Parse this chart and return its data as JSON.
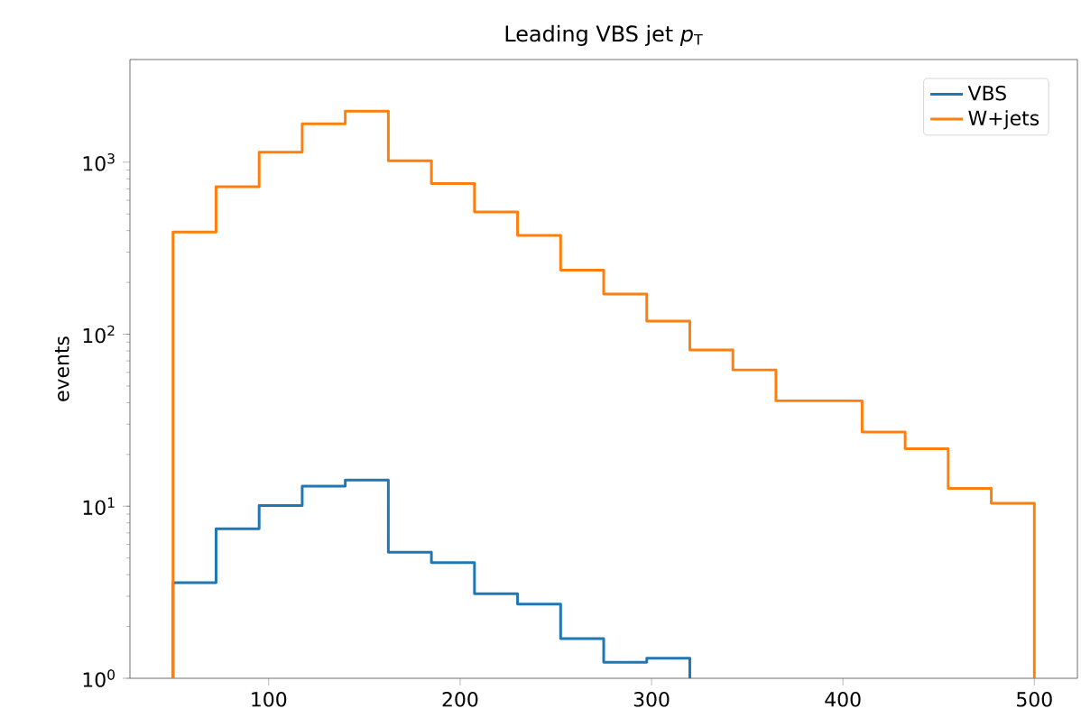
{
  "chart_data": {
    "type": "histogram",
    "title": "Leading VBS jet *p*$_{T}$",
    "ylabel": "events",
    "log": "y",
    "legend": "top right",
    "grid": false,
    "xlim": [
      27.5,
      522.5
    ],
    "xticks": [
      100,
      200,
      300,
      400,
      500
    ],
    "ylim": [
      1,
      3950
    ],
    "yticks": [
      {
        "value": 1,
        "label": "10$^{0}$"
      },
      {
        "value": 10,
        "label": "10$^{1}$"
      },
      {
        "value": 100,
        "label": "10$^{2}$"
      },
      {
        "value": 1000,
        "label": "10$^{3}$"
      }
    ],
    "bins": [
      50,
      72.5,
      95,
      117.5,
      140,
      162.5,
      185,
      207.5,
      230,
      252.5,
      275,
      297.5,
      320,
      342.5,
      365,
      387.5,
      410,
      432.5,
      455,
      477.5,
      500
    ],
    "series": [
      {
        "name": "VBS",
        "color": "#1f77b4",
        "bins": [
          50,
          72.5,
          95,
          117.5,
          140,
          162.5,
          185,
          207.5,
          230,
          252.5,
          275,
          297.5,
          320
        ],
        "values": [
          3.6,
          7.4,
          10.1,
          13.1,
          14.2,
          5.4,
          4.7,
          3.1,
          2.7,
          1.7,
          1.24,
          1.31
        ]
      },
      {
        "name": "W+jets",
        "color": "#ff7f0e",
        "values": [
          393,
          721,
          1143,
          1671,
          1980,
          1019,
          751,
          514,
          375,
          236,
          171,
          119,
          81,
          62,
          41,
          41,
          27,
          21.6,
          12.7,
          10.4
        ]
      }
    ]
  }
}
